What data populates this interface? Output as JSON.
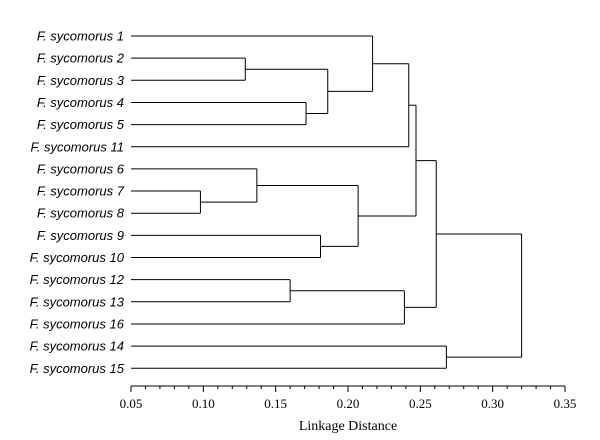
{
  "chart_data": {
    "type": "dendrogram",
    "orientation": "horizontal",
    "xlabel": "Linkage Distance",
    "xlim": [
      0.05,
      0.35
    ],
    "major_ticks": [
      0.05,
      0.1,
      0.15,
      0.2,
      0.25,
      0.3,
      0.35
    ],
    "tick_labels": [
      "0.05",
      "0.10",
      "0.15",
      "0.20",
      "0.25",
      "0.30",
      "0.35"
    ],
    "minor_tick_step": 0.01,
    "leaves": [
      "F. sycomorus 1",
      "F. sycomorus 2",
      "F. sycomorus 3",
      "F. sycomorus 4",
      "F. sycomorus 5",
      "F. sycomorus 11",
      "F. sycomorus 6",
      "F. sycomorus 7",
      "F. sycomorus 8",
      "F. sycomorus 9",
      "F. sycomorus 10",
      "F. sycomorus 12",
      "F. sycomorus 13",
      "F. sycomorus 16",
      "F. sycomorus 14",
      "F. sycomorus 15"
    ],
    "leaf_distance": 0.05,
    "merges": [
      {
        "id": "m1",
        "left": 7,
        "right": 8,
        "height": 0.098
      },
      {
        "id": "m2",
        "left": 1,
        "right": 2,
        "height": 0.129
      },
      {
        "id": "m3",
        "left": 6,
        "right": "m1",
        "height": 0.137
      },
      {
        "id": "m4",
        "left": 11,
        "right": 12,
        "height": 0.16
      },
      {
        "id": "m5",
        "left": 3,
        "right": 4,
        "height": 0.171
      },
      {
        "id": "m6",
        "left": 9,
        "right": 10,
        "height": 0.181
      },
      {
        "id": "m7",
        "left": "m2",
        "right": "m5",
        "height": 0.186
      },
      {
        "id": "m8",
        "left": "m3",
        "right": "m6",
        "height": 0.207
      },
      {
        "id": "m9",
        "left": 0,
        "right": "m7",
        "height": 0.217
      },
      {
        "id": "m10",
        "left": "m4",
        "right": 13,
        "height": 0.239
      },
      {
        "id": "m11",
        "left": "m9",
        "right": 5,
        "height": 0.242
      },
      {
        "id": "m12",
        "left": "m11",
        "right": "m8",
        "height": 0.247
      },
      {
        "id": "m13",
        "left": "m12",
        "right": "m10",
        "height": 0.261
      },
      {
        "id": "m14",
        "left": 14,
        "right": 15,
        "height": 0.268
      },
      {
        "id": "m15",
        "left": "m13",
        "right": "m14",
        "height": 0.32
      }
    ]
  }
}
